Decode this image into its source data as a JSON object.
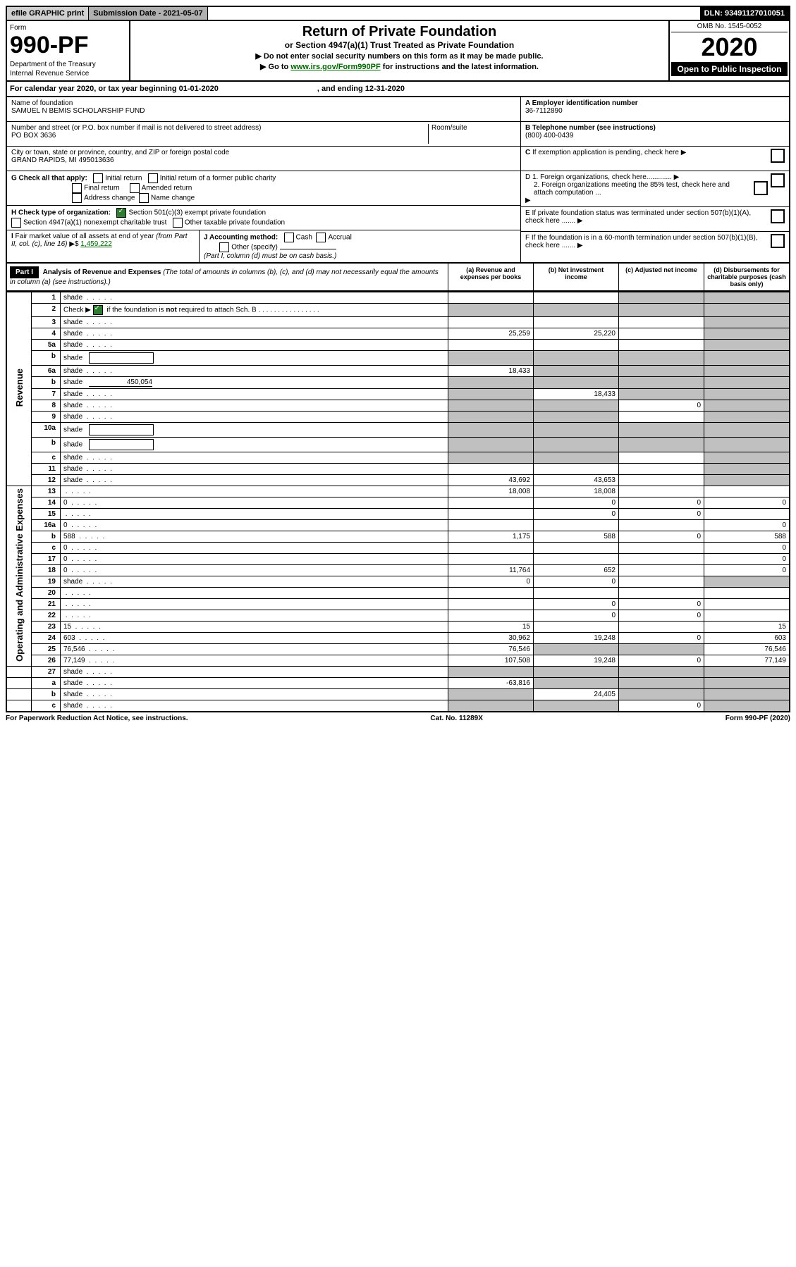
{
  "top": {
    "efile": "efile GRAPHIC print",
    "submission": "Submission Date - 2021-05-07",
    "dln": "DLN: 93491127010051"
  },
  "header": {
    "form_word": "Form",
    "form_number": "990-PF",
    "dept1": "Department of the Treasury",
    "dept2": "Internal Revenue Service",
    "title": "Return of Private Foundation",
    "subtitle": "or Section 4947(a)(1) Trust Treated as Private Foundation",
    "instr1": "▶ Do not enter social security numbers on this form as it may be made public.",
    "instr2_pre": "▶ Go to ",
    "instr2_link": "www.irs.gov/Form990PF",
    "instr2_post": " for instructions and the latest information.",
    "omb": "OMB No. 1545-0052",
    "year": "2020",
    "open": "Open to Public Inspection"
  },
  "cal_year": {
    "pre": "For calendar year 2020, or tax year beginning 01-01-2020",
    "post": ", and ending 12-31-2020"
  },
  "entity": {
    "name_label": "Name of foundation",
    "name": "SAMUEL N BEMIS SCHOLARSHIP FUND",
    "addr_label": "Number and street (or P.O. box number if mail is not delivered to street address)",
    "addr": "PO BOX 3636",
    "room_label": "Room/suite",
    "city_label": "City or town, state or province, country, and ZIP or foreign postal code",
    "city": "GRAND RAPIDS, MI  495013636",
    "ein_label": "A Employer identification number",
    "ein": "36-7112890",
    "phone_label": "B Telephone number (see instructions)",
    "phone": "(800) 400-0439",
    "c_label": "C If exemption application is pending, check here",
    "d1_label": "D 1. Foreign organizations, check here.............",
    "d2_label": "2. Foreign organizations meeting the 85% test, check here and attach computation ...",
    "e_label": "E  If private foundation status was terminated under section 507(b)(1)(A), check here .......",
    "f_label": "F  If the foundation is in a 60-month termination under section 507(b)(1)(B), check here ......."
  },
  "g": {
    "label": "G Check all that apply:",
    "initial": "Initial return",
    "initial_former": "Initial return of a former public charity",
    "final": "Final return",
    "amended": "Amended return",
    "addr_change": "Address change",
    "name_change": "Name change"
  },
  "h": {
    "label": "H Check type of organization:",
    "c3": "Section 501(c)(3) exempt private foundation",
    "trust": "Section 4947(a)(1) nonexempt charitable trust",
    "other": "Other taxable private foundation"
  },
  "i": {
    "label": "I Fair market value of all assets at end of year (from Part II, col. (c), line 16) ▶$ ",
    "value": "1,459,222"
  },
  "j": {
    "label": "J Accounting method:",
    "cash": "Cash",
    "accrual": "Accrual",
    "other": "Other (specify)",
    "note": "(Part I, column (d) must be on cash basis.)"
  },
  "part1": {
    "label": "Part I",
    "title": "Analysis of Revenue and Expenses",
    "note": " (The total of amounts in columns (b), (c), and (d) may not necessarily equal the amounts in column (a) (see instructions).)",
    "col_a": "(a)   Revenue and expenses per books",
    "col_b": "(b)   Net investment income",
    "col_c": "(c)   Adjusted net income",
    "col_d": "(d)   Disbursements for charitable purposes (cash basis only)"
  },
  "sections": {
    "revenue": "Revenue",
    "opadmin": "Operating and Administrative Expenses"
  },
  "rows": [
    {
      "n": "1",
      "d": "shade",
      "a": "",
      "b": "",
      "c": "shade",
      "sec": "rev"
    },
    {
      "n": "2",
      "d": "shade",
      "a": "shade",
      "b": "shade",
      "c": "shade",
      "sec": "rev",
      "check": true
    },
    {
      "n": "3",
      "d": "shade",
      "a": "",
      "b": "",
      "c": "",
      "sec": "rev"
    },
    {
      "n": "4",
      "d": "shade",
      "a": "25,259",
      "b": "25,220",
      "c": "",
      "sec": "rev"
    },
    {
      "n": "5a",
      "d": "shade",
      "a": "",
      "b": "",
      "c": "",
      "sec": "rev"
    },
    {
      "n": "b",
      "d": "shade",
      "a": "shade",
      "b": "shade",
      "c": "shade",
      "sec": "rev",
      "inline": true
    },
    {
      "n": "6a",
      "d": "shade",
      "a": "18,433",
      "b": "shade",
      "c": "shade",
      "sec": "rev"
    },
    {
      "n": "b",
      "d": "shade",
      "a": "shade",
      "b": "shade",
      "c": "shade",
      "sec": "rev",
      "inline_val": "450,054"
    },
    {
      "n": "7",
      "d": "shade",
      "a": "shade",
      "b": "18,433",
      "c": "shade",
      "sec": "rev"
    },
    {
      "n": "8",
      "d": "shade",
      "a": "shade",
      "b": "shade",
      "c": "0",
      "sec": "rev"
    },
    {
      "n": "9",
      "d": "shade",
      "a": "shade",
      "b": "shade",
      "c": "",
      "sec": "rev"
    },
    {
      "n": "10a",
      "d": "shade",
      "a": "shade",
      "b": "shade",
      "c": "shade",
      "sec": "rev",
      "inline": true
    },
    {
      "n": "b",
      "d": "shade",
      "a": "shade",
      "b": "shade",
      "c": "shade",
      "sec": "rev",
      "inline": true
    },
    {
      "n": "c",
      "d": "shade",
      "a": "shade",
      "b": "shade",
      "c": "",
      "sec": "rev"
    },
    {
      "n": "11",
      "d": "shade",
      "a": "",
      "b": "",
      "c": "",
      "sec": "rev"
    },
    {
      "n": "12",
      "d": "shade",
      "a": "43,692",
      "b": "43,653",
      "c": "",
      "sec": "rev"
    },
    {
      "n": "13",
      "d": "",
      "a": "18,008",
      "b": "18,008",
      "c": "",
      "sec": "op"
    },
    {
      "n": "14",
      "d": "0",
      "a": "",
      "b": "0",
      "c": "0",
      "sec": "op"
    },
    {
      "n": "15",
      "d": "",
      "a": "",
      "b": "0",
      "c": "0",
      "sec": "op"
    },
    {
      "n": "16a",
      "d": "0",
      "a": "",
      "b": "",
      "c": "",
      "sec": "op"
    },
    {
      "n": "b",
      "d": "588",
      "a": "1,175",
      "b": "588",
      "c": "0",
      "sec": "op"
    },
    {
      "n": "c",
      "d": "0",
      "a": "",
      "b": "",
      "c": "",
      "sec": "op"
    },
    {
      "n": "17",
      "d": "0",
      "a": "",
      "b": "",
      "c": "",
      "sec": "op"
    },
    {
      "n": "18",
      "d": "0",
      "a": "11,764",
      "b": "652",
      "c": "",
      "sec": "op"
    },
    {
      "n": "19",
      "d": "shade",
      "a": "0",
      "b": "0",
      "c": "",
      "sec": "op"
    },
    {
      "n": "20",
      "d": "",
      "a": "",
      "b": "",
      "c": "",
      "sec": "op"
    },
    {
      "n": "21",
      "d": "",
      "a": "",
      "b": "0",
      "c": "0",
      "sec": "op"
    },
    {
      "n": "22",
      "d": "",
      "a": "",
      "b": "0",
      "c": "0",
      "sec": "op"
    },
    {
      "n": "23",
      "d": "15",
      "a": "15",
      "b": "",
      "c": "",
      "sec": "op"
    },
    {
      "n": "24",
      "d": "603",
      "a": "30,962",
      "b": "19,248",
      "c": "0",
      "sec": "op"
    },
    {
      "n": "25",
      "d": "76,546",
      "a": "76,546",
      "b": "shade",
      "c": "shade",
      "sec": "op"
    },
    {
      "n": "26",
      "d": "77,149",
      "a": "107,508",
      "b": "19,248",
      "c": "0",
      "sec": "op"
    },
    {
      "n": "27",
      "d": "shade",
      "a": "shade",
      "b": "shade",
      "c": "shade",
      "sec": "none"
    },
    {
      "n": "a",
      "d": "shade",
      "a": "-63,816",
      "b": "shade",
      "c": "shade",
      "sec": "none"
    },
    {
      "n": "b",
      "d": "shade",
      "a": "shade",
      "b": "24,405",
      "c": "shade",
      "sec": "none"
    },
    {
      "n": "c",
      "d": "shade",
      "a": "shade",
      "b": "shade",
      "c": "0",
      "sec": "none"
    }
  ],
  "footer": {
    "left": "For Paperwork Reduction Act Notice, see instructions.",
    "mid": "Cat. No. 11289X",
    "right": "Form 990-PF (2020)"
  }
}
